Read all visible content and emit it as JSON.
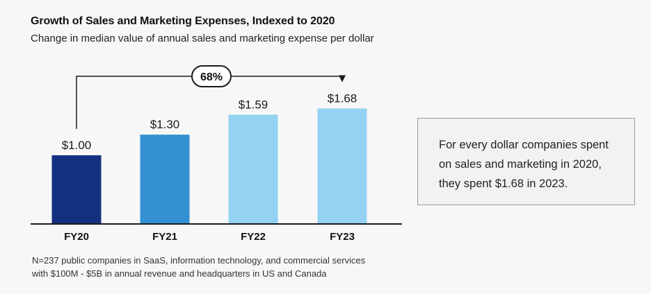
{
  "chart_data": {
    "type": "bar",
    "title": "Growth of Sales and Marketing Expenses, Indexed to 2020",
    "subtitle": "Change in median value of annual sales and marketing expense per dollar",
    "categories": [
      "FY20",
      "FY21",
      "FY22",
      "FY23"
    ],
    "values": [
      1.0,
      1.3,
      1.59,
      1.68
    ],
    "value_labels": [
      "$1.00",
      "$1.30",
      "$1.59",
      "$1.68"
    ],
    "bar_colors": [
      "#13317e",
      "#3391d2",
      "#93d2f3",
      "#93d2f3"
    ],
    "annotation": {
      "label": "68%",
      "from": "FY20",
      "to": "FY23"
    },
    "ylim": [
      0,
      2.25
    ],
    "xlabel": "",
    "ylabel": ""
  },
  "footnote": {
    "line1": "N=237 public companies in SaaS, information technology, and commercial services",
    "line2": "with $100M - $5B in annual revenue and headquarters in US and Canada"
  },
  "callout": {
    "line1": "For every dollar companies spent",
    "line2": "on sales and marketing in 2020,",
    "line3": "they spent $1.68 in 2023."
  },
  "colors": {
    "axis": "#1a1a1a",
    "bracket": "#1a1a1a",
    "background": "#f7f7f7"
  }
}
